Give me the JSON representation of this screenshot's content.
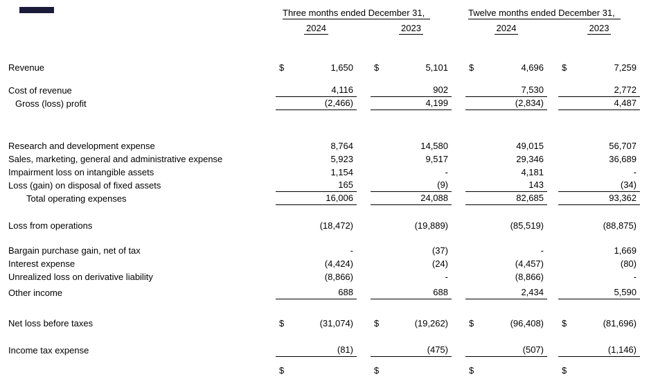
{
  "page": {
    "background": "#ffffff"
  },
  "artifact": {
    "color": "#1b1b3a"
  },
  "header": {
    "period1": "Three months ended December 31,",
    "period2": "Twelve months ended December 31,",
    "years": [
      "2024",
      "2023",
      "2024",
      "2023"
    ]
  },
  "table": {
    "dollar_sign": "$",
    "rows": [
      {
        "label": "Revenue",
        "indent": 0,
        "dollar": true,
        "values": [
          "1,650",
          "5,101",
          "4,696",
          "7,259"
        ],
        "ruleBelow": false,
        "gapBefore": 0
      },
      {
        "label": "Cost of revenue",
        "indent": 0,
        "dollar": false,
        "values": [
          "4,116",
          "902",
          "7,530",
          "2,772"
        ],
        "ruleBelow": true,
        "gapBefore": 14
      },
      {
        "label": "Gross (loss) profit",
        "indent": 1,
        "dollar": false,
        "values": [
          "(2,466)",
          "4,199",
          "(2,834)",
          "4,487"
        ],
        "ruleBelow": true,
        "gapBefore": 0
      },
      {
        "label": "Research and development expense",
        "indent": 0,
        "dollar": false,
        "values": [
          "8,764",
          "14,580",
          "49,015",
          "56,707"
        ],
        "ruleBelow": false,
        "gapBefore": 42
      },
      {
        "label": "Sales, marketing, general and administrative expense",
        "indent": 0,
        "dollar": false,
        "values": [
          "5,923",
          "9,517",
          "29,346",
          "36,689"
        ],
        "ruleBelow": false,
        "gapBefore": 0
      },
      {
        "label": "Impairment loss on intangible assets",
        "indent": 0,
        "dollar": false,
        "values": [
          "1,154",
          "-",
          "4,181",
          "-"
        ],
        "ruleBelow": false,
        "gapBefore": 0
      },
      {
        "label": "Loss (gain) on disposal of fixed assets",
        "indent": 0,
        "dollar": false,
        "values": [
          "165",
          "(9)",
          "143",
          "(34)"
        ],
        "ruleBelow": true,
        "gapBefore": 0
      },
      {
        "label": "Total operating expenses",
        "indent": 2,
        "dollar": false,
        "values": [
          "16,006",
          "24,088",
          "82,685",
          "93,362"
        ],
        "ruleBelow": true,
        "gapBefore": 0
      },
      {
        "label": "Loss from operations",
        "indent": 0,
        "dollar": false,
        "values": [
          "(18,472)",
          "(19,889)",
          "(85,519)",
          "(88,875)"
        ],
        "ruleBelow": false,
        "gapBefore": 20
      },
      {
        "label": "Bargain purchase gain, net of tax",
        "indent": 0,
        "dollar": false,
        "values": [
          "-",
          "(37)",
          "-",
          "1,669"
        ],
        "ruleBelow": false,
        "gapBefore": 17
      },
      {
        "label": "Interest expense",
        "indent": 0,
        "dollar": false,
        "values": [
          "(4,424)",
          "(24)",
          "(4,457)",
          "(80)"
        ],
        "ruleBelow": false,
        "gapBefore": 0
      },
      {
        "label": "Unrealized loss on derivative liability",
        "indent": 0,
        "dollar": false,
        "values": [
          "(8,866)",
          "-",
          "(8,866)",
          "-"
        ],
        "ruleBelow": false,
        "gapBefore": 0
      },
      {
        "label": "Other income",
        "indent": 0,
        "dollar": false,
        "values": [
          "688",
          "688",
          "2,434",
          "5,590"
        ],
        "ruleBelow": true,
        "gapBefore": 4
      },
      {
        "label": "Net loss before taxes",
        "indent": 0,
        "dollar": true,
        "values": [
          "(31,074)",
          "(19,262)",
          "(96,408)",
          "(81,696)"
        ],
        "ruleBelow": false,
        "gapBefore": 25
      },
      {
        "label": "Income tax expense",
        "indent": 0,
        "dollar": false,
        "values": [
          "(81)",
          "(475)",
          "(507)",
          "(1,146)"
        ],
        "ruleBelow": true,
        "gapBefore": 20
      },
      {
        "label": "",
        "indent": 0,
        "dollar": true,
        "values": [
          "",
          "",
          "",
          ""
        ],
        "ruleBelow": false,
        "gapBefore": 10,
        "clipped": true
      }
    ]
  }
}
